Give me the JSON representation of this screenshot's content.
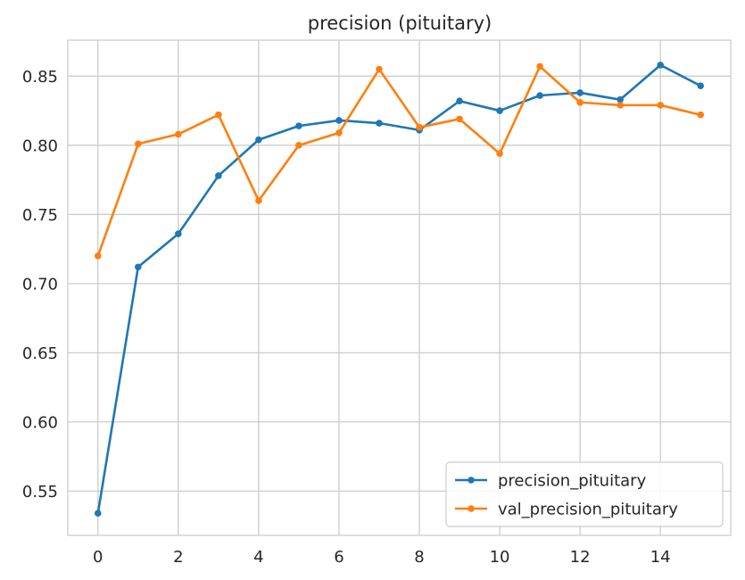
{
  "chart_data": {
    "type": "line",
    "title": "precision (pituitary)",
    "xlabel": "",
    "ylabel": "",
    "xlim": [
      -0.75,
      15.75
    ],
    "ylim": [
      0.518,
      0.876
    ],
    "xticks": [
      0,
      2,
      4,
      6,
      8,
      10,
      12,
      14
    ],
    "xtick_labels": [
      "0",
      "2",
      "4",
      "6",
      "8",
      "10",
      "12",
      "14"
    ],
    "yticks": [
      0.55,
      0.6,
      0.65,
      0.7,
      0.75,
      0.8,
      0.85
    ],
    "ytick_labels": [
      "0.55",
      "0.60",
      "0.65",
      "0.70",
      "0.75",
      "0.80",
      "0.85"
    ],
    "grid": true,
    "legend_position": "lower-right",
    "x": [
      0,
      1,
      2,
      3,
      4,
      5,
      6,
      7,
      8,
      9,
      10,
      11,
      12,
      13,
      14,
      15
    ],
    "series": [
      {
        "name": "precision_pituitary",
        "color": "#1f77b4",
        "marker": "circle",
        "values": [
          0.534,
          0.712,
          0.736,
          0.778,
          0.804,
          0.814,
          0.818,
          0.816,
          0.811,
          0.832,
          0.825,
          0.836,
          0.838,
          0.833,
          0.858,
          0.843
        ]
      },
      {
        "name": "val_precision_pituitary",
        "color": "#ff7f0e",
        "marker": "circle",
        "values": [
          0.72,
          0.801,
          0.808,
          0.822,
          0.76,
          0.8,
          0.809,
          0.855,
          0.813,
          0.819,
          0.794,
          0.857,
          0.831,
          0.829,
          0.829,
          0.822
        ]
      }
    ]
  }
}
